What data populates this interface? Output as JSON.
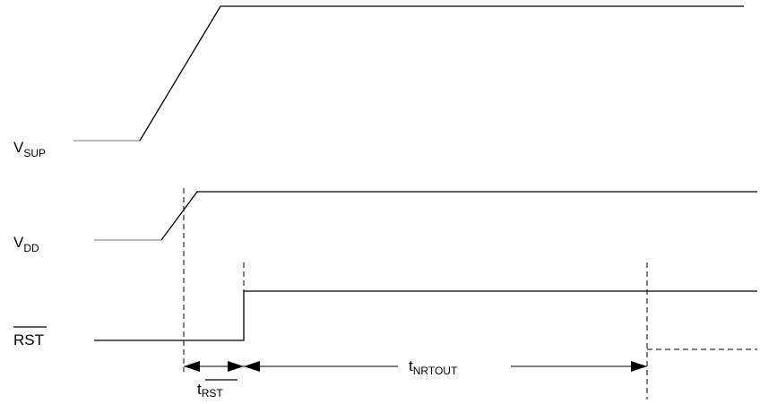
{
  "signals": {
    "vsup": {
      "main": "V",
      "sub": "SUP"
    },
    "vdd": {
      "main": "V",
      "sub": "DD"
    },
    "rst": {
      "main": "RST"
    }
  },
  "timings": {
    "t_rst": {
      "main": "t",
      "sub": "RST"
    },
    "t_nrtout": {
      "main": "t",
      "sub": "NRTOUT"
    }
  }
}
